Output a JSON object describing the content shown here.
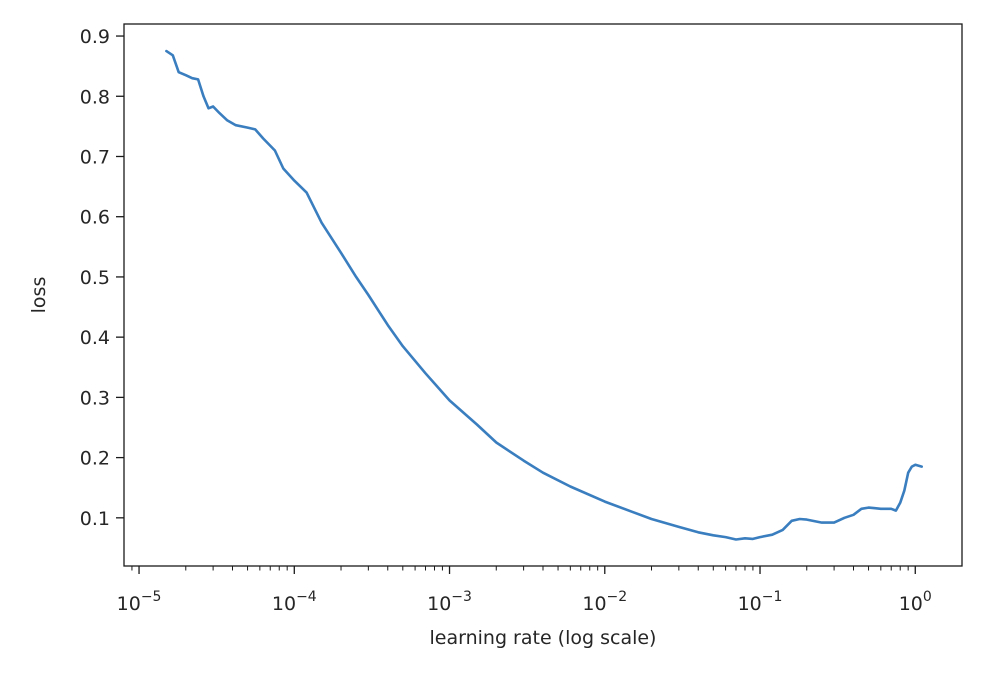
{
  "chart_data": {
    "type": "line",
    "title": "",
    "xlabel": "learning rate (log scale)",
    "ylabel": "loss",
    "xscale": "log",
    "xlim": [
      8e-06,
      2.0
    ],
    "ylim": [
      0.02,
      0.92
    ],
    "grid": false,
    "line_color": "#3a7ebf",
    "x_ticks": [
      {
        "value": 1e-05,
        "base": "10",
        "exp": "−5"
      },
      {
        "value": 0.0001,
        "base": "10",
        "exp": "−4"
      },
      {
        "value": 0.001,
        "base": "10",
        "exp": "−3"
      },
      {
        "value": 0.01,
        "base": "10",
        "exp": "−2"
      },
      {
        "value": 0.1,
        "base": "10",
        "exp": "−1"
      },
      {
        "value": 1,
        "base": "10",
        "exp": "0"
      }
    ],
    "y_ticks": [
      "0.1",
      "0.2",
      "0.3",
      "0.4",
      "0.5",
      "0.6",
      "0.7",
      "0.8",
      "0.9"
    ],
    "series": [
      {
        "points": [
          [
            1.5e-05,
            0.875
          ],
          [
            1.65e-05,
            0.868
          ],
          [
            1.8e-05,
            0.84
          ],
          [
            2e-05,
            0.835
          ],
          [
            2.2e-05,
            0.83
          ],
          [
            2.4e-05,
            0.828
          ],
          [
            2.6e-05,
            0.8
          ],
          [
            2.8e-05,
            0.78
          ],
          [
            3e-05,
            0.783
          ],
          [
            3.3e-05,
            0.772
          ],
          [
            3.7e-05,
            0.76
          ],
          [
            4.2e-05,
            0.752
          ],
          [
            5e-05,
            0.748
          ],
          [
            5.6e-05,
            0.745
          ],
          [
            6.3e-05,
            0.73
          ],
          [
            7.5e-05,
            0.71
          ],
          [
            8.5e-05,
            0.68
          ],
          [
            0.0001,
            0.66
          ],
          [
            0.00012,
            0.64
          ],
          [
            0.00015,
            0.59
          ],
          [
            0.0002,
            0.54
          ],
          [
            0.00025,
            0.5
          ],
          [
            0.0003,
            0.47
          ],
          [
            0.0004,
            0.42
          ],
          [
            0.0005,
            0.385
          ],
          [
            0.0007,
            0.34
          ],
          [
            0.001,
            0.295
          ],
          [
            0.0015,
            0.255
          ],
          [
            0.002,
            0.225
          ],
          [
            0.003,
            0.195
          ],
          [
            0.004,
            0.175
          ],
          [
            0.006,
            0.152
          ],
          [
            0.01,
            0.127
          ],
          [
            0.015,
            0.11
          ],
          [
            0.02,
            0.098
          ],
          [
            0.03,
            0.085
          ],
          [
            0.04,
            0.076
          ],
          [
            0.05,
            0.071
          ],
          [
            0.06,
            0.068
          ],
          [
            0.07,
            0.064
          ],
          [
            0.08,
            0.066
          ],
          [
            0.09,
            0.065
          ],
          [
            0.1,
            0.068
          ],
          [
            0.12,
            0.072
          ],
          [
            0.14,
            0.08
          ],
          [
            0.16,
            0.095
          ],
          [
            0.18,
            0.098
          ],
          [
            0.2,
            0.097
          ],
          [
            0.25,
            0.092
          ],
          [
            0.3,
            0.092
          ],
          [
            0.35,
            0.1
          ],
          [
            0.4,
            0.105
          ],
          [
            0.45,
            0.115
          ],
          [
            0.5,
            0.117
          ],
          [
            0.55,
            0.116
          ],
          [
            0.6,
            0.115
          ],
          [
            0.7,
            0.115
          ],
          [
            0.75,
            0.112
          ],
          [
            0.8,
            0.125
          ],
          [
            0.85,
            0.145
          ],
          [
            0.9,
            0.175
          ],
          [
            0.95,
            0.185
          ],
          [
            1.0,
            0.188
          ],
          [
            1.1,
            0.185
          ]
        ]
      }
    ]
  }
}
